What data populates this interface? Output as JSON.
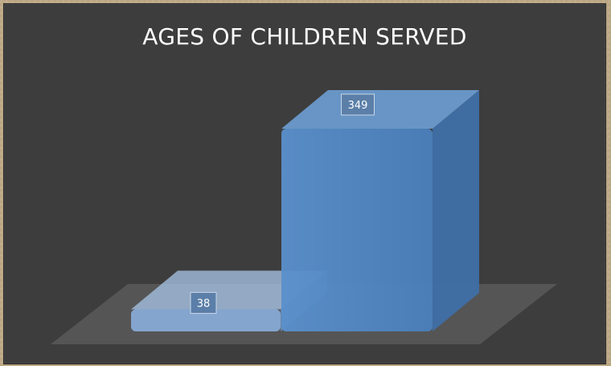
{
  "chart_data": {
    "type": "bar",
    "title": "AGES OF CHILDREN SERVED",
    "categories": [
      "",
      ""
    ],
    "series": [
      {
        "values": [
          38,
          349
        ]
      }
    ],
    "data_labels": [
      "38",
      "349"
    ],
    "ylim": [
      0,
      349
    ],
    "grid": false,
    "legend": "none",
    "colors": {
      "background": "#3d3d3d",
      "floor": "#595959",
      "bar1_front": "#8aaedb",
      "bar2_front": "#4f85c0",
      "label_box": "#5b7fa8"
    }
  }
}
